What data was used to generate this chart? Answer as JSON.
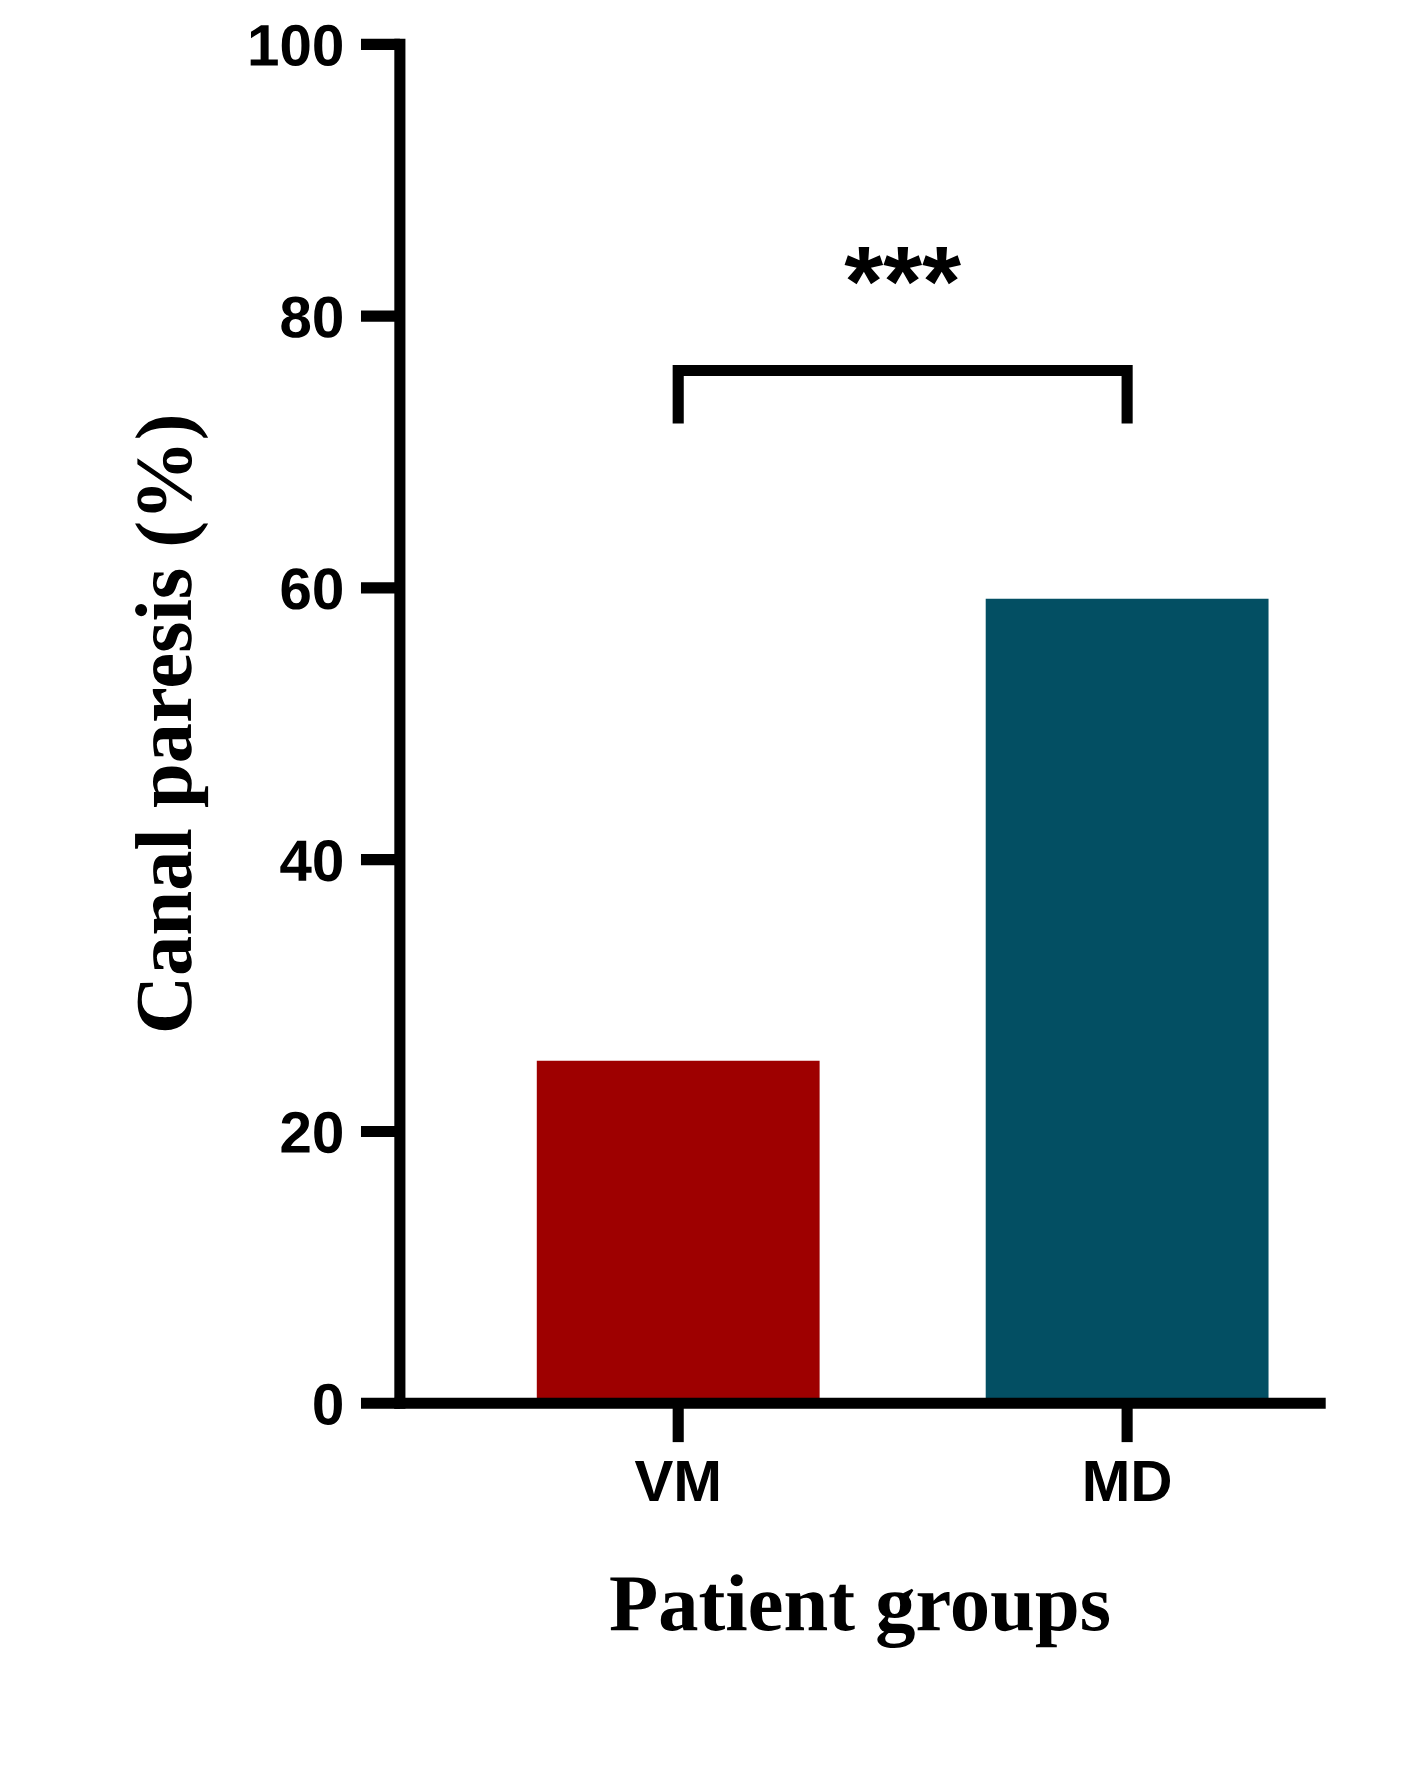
{
  "chart_data": {
    "type": "bar",
    "xlabel": "Patient groups",
    "ylabel": "Canal paresis (%)",
    "categories": [
      "VM",
      "MD"
    ],
    "values": [
      25.2,
      59.2
    ],
    "colors": [
      "#9e0000",
      "#034f63"
    ],
    "ylim": [
      0,
      100
    ],
    "yticks": [
      0,
      20,
      40,
      60,
      80,
      100
    ],
    "grid": false,
    "legend": false,
    "annotations": [
      "***"
    ]
  }
}
